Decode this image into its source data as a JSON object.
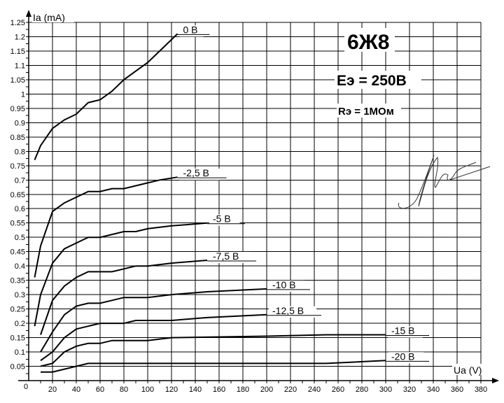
{
  "chart_data": {
    "type": "line",
    "title": "6Ж8",
    "annotations": [
      "Eэ = 250В",
      "Rэ = 1МОм"
    ],
    "signature": "handwritten signature",
    "xlabel": "Ua (V)",
    "ylabel": "Ia (mA)",
    "xlim": [
      0,
      380
    ],
    "ylim": [
      0,
      1.25
    ],
    "grid": true,
    "x_ticks": [
      20,
      40,
      60,
      80,
      100,
      120,
      140,
      160,
      180,
      200,
      220,
      240,
      260,
      280,
      300,
      320,
      340,
      360,
      380
    ],
    "y_ticks": [
      "0.05",
      "0.1",
      "0.15",
      "0.2",
      "0.25",
      "0.3",
      "0.35",
      "0.4",
      "0.45",
      "0.5",
      "0.55",
      "0.6",
      "0.65",
      "0.7",
      "0.75",
      "0.8",
      "0.85",
      "0.9",
      "0.95",
      "1",
      "1.05",
      "1.1",
      "1.15",
      "1.2",
      "1.25"
    ],
    "origin_label": "0",
    "series": [
      {
        "name": "0 В",
        "points": [
          [
            5,
            0.77
          ],
          [
            10,
            0.82
          ],
          [
            20,
            0.88
          ],
          [
            30,
            0.91
          ],
          [
            40,
            0.93
          ],
          [
            50,
            0.97
          ],
          [
            60,
            0.98
          ],
          [
            70,
            1.01
          ],
          [
            80,
            1.05
          ],
          [
            90,
            1.08
          ],
          [
            100,
            1.11
          ],
          [
            110,
            1.15
          ],
          [
            120,
            1.19
          ],
          [
            125,
            1.21
          ]
        ]
      },
      {
        "name": "-2,5 В",
        "points": [
          [
            5,
            0.36
          ],
          [
            10,
            0.47
          ],
          [
            20,
            0.59
          ],
          [
            30,
            0.62
          ],
          [
            40,
            0.64
          ],
          [
            50,
            0.66
          ],
          [
            60,
            0.66
          ],
          [
            70,
            0.67
          ],
          [
            80,
            0.67
          ],
          [
            90,
            0.68
          ],
          [
            100,
            0.69
          ],
          [
            110,
            0.7
          ],
          [
            125,
            0.71
          ]
        ]
      },
      {
        "name": "-5 В",
        "points": [
          [
            5,
            0.19
          ],
          [
            10,
            0.3
          ],
          [
            20,
            0.41
          ],
          [
            30,
            0.46
          ],
          [
            40,
            0.48
          ],
          [
            50,
            0.5
          ],
          [
            60,
            0.5
          ],
          [
            70,
            0.51
          ],
          [
            80,
            0.52
          ],
          [
            90,
            0.52
          ],
          [
            100,
            0.53
          ],
          [
            120,
            0.54
          ],
          [
            150,
            0.55
          ]
        ]
      },
      {
        "name": "-7,5 В",
        "points": [
          [
            10,
            0.16
          ],
          [
            20,
            0.28
          ],
          [
            30,
            0.33
          ],
          [
            40,
            0.36
          ],
          [
            50,
            0.38
          ],
          [
            60,
            0.38
          ],
          [
            70,
            0.38
          ],
          [
            80,
            0.39
          ],
          [
            90,
            0.4
          ],
          [
            100,
            0.4
          ],
          [
            120,
            0.41
          ],
          [
            150,
            0.42
          ]
        ]
      },
      {
        "name": "-10 В",
        "points": [
          [
            10,
            0.1
          ],
          [
            20,
            0.17
          ],
          [
            30,
            0.23
          ],
          [
            40,
            0.26
          ],
          [
            50,
            0.27
          ],
          [
            60,
            0.27
          ],
          [
            70,
            0.28
          ],
          [
            80,
            0.29
          ],
          [
            100,
            0.29
          ],
          [
            120,
            0.3
          ],
          [
            150,
            0.31
          ],
          [
            200,
            0.32
          ]
        ]
      },
      {
        "name": "-12,5 В",
        "points": [
          [
            10,
            0.07
          ],
          [
            20,
            0.1
          ],
          [
            30,
            0.15
          ],
          [
            40,
            0.18
          ],
          [
            50,
            0.19
          ],
          [
            60,
            0.2
          ],
          [
            80,
            0.2
          ],
          [
            90,
            0.21
          ],
          [
            120,
            0.21
          ],
          [
            150,
            0.22
          ],
          [
            200,
            0.23
          ]
        ]
      },
      {
        "name": "-15 В",
        "points": [
          [
            10,
            0.05
          ],
          [
            20,
            0.06
          ],
          [
            30,
            0.1
          ],
          [
            40,
            0.12
          ],
          [
            50,
            0.13
          ],
          [
            60,
            0.13
          ],
          [
            70,
            0.14
          ],
          [
            100,
            0.14
          ],
          [
            120,
            0.15
          ],
          [
            200,
            0.155
          ],
          [
            250,
            0.16
          ],
          [
            300,
            0.16
          ]
        ]
      },
      {
        "name": "-20 В",
        "points": [
          [
            10,
            0.03
          ],
          [
            20,
            0.03
          ],
          [
            30,
            0.04
          ],
          [
            40,
            0.05
          ],
          [
            50,
            0.06
          ],
          [
            60,
            0.06
          ],
          [
            250,
            0.06
          ],
          [
            300,
            0.07
          ]
        ]
      }
    ]
  }
}
